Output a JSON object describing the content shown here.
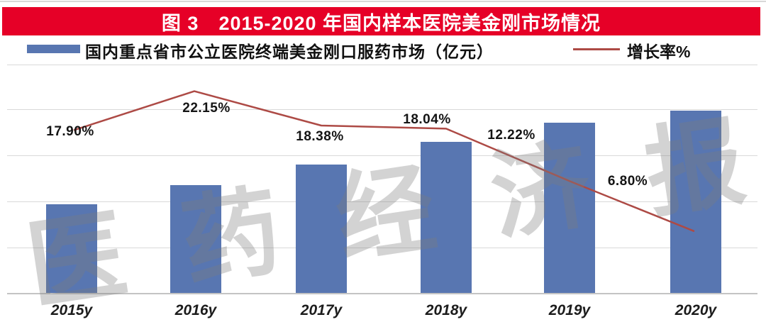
{
  "banner": {
    "title": "图 3　2015-2020 年国内样本医院美金刚市场情况"
  },
  "legend": {
    "bar_label": "国内重点省市公立医院终端美金刚口服药市场（亿元）",
    "line_label": "增长率%"
  },
  "watermark_text": "医药经济报",
  "colors": {
    "banner_red": "#e60027",
    "bar_blue": "#5876b1",
    "line_red": "#ad4a45",
    "gridline": "#d9d9d9",
    "axis": "#c4c4c4"
  },
  "chart_data": {
    "type": "combo",
    "title": "图 3　2015-2020 年国内样本医院美金刚市场情况",
    "categories": [
      "2015y",
      "2016y",
      "2017y",
      "2018y",
      "2019y",
      "2020y"
    ],
    "series": [
      {
        "name": "国内重点省市公立医院终端美金刚口服药市场（亿元）",
        "type": "bar",
        "axis_tick_labels_visible": false,
        "relative_heights": [
          0.39,
          0.474,
          0.564,
          0.663,
          0.748,
          0.801
        ]
      },
      {
        "name": "增长率%",
        "type": "line",
        "values": [
          17.9,
          22.15,
          18.38,
          18.04,
          12.22,
          6.8
        ],
        "point_labels": [
          "17.90%",
          "22.15%",
          "18.38%",
          "18.04%",
          "12.22%",
          "6.80%"
        ]
      }
    ],
    "right_axis_range_estimated": [
      0,
      25
    ],
    "gridlines": true,
    "legend_position": "top",
    "xlabel": "",
    "ylabel": ""
  }
}
